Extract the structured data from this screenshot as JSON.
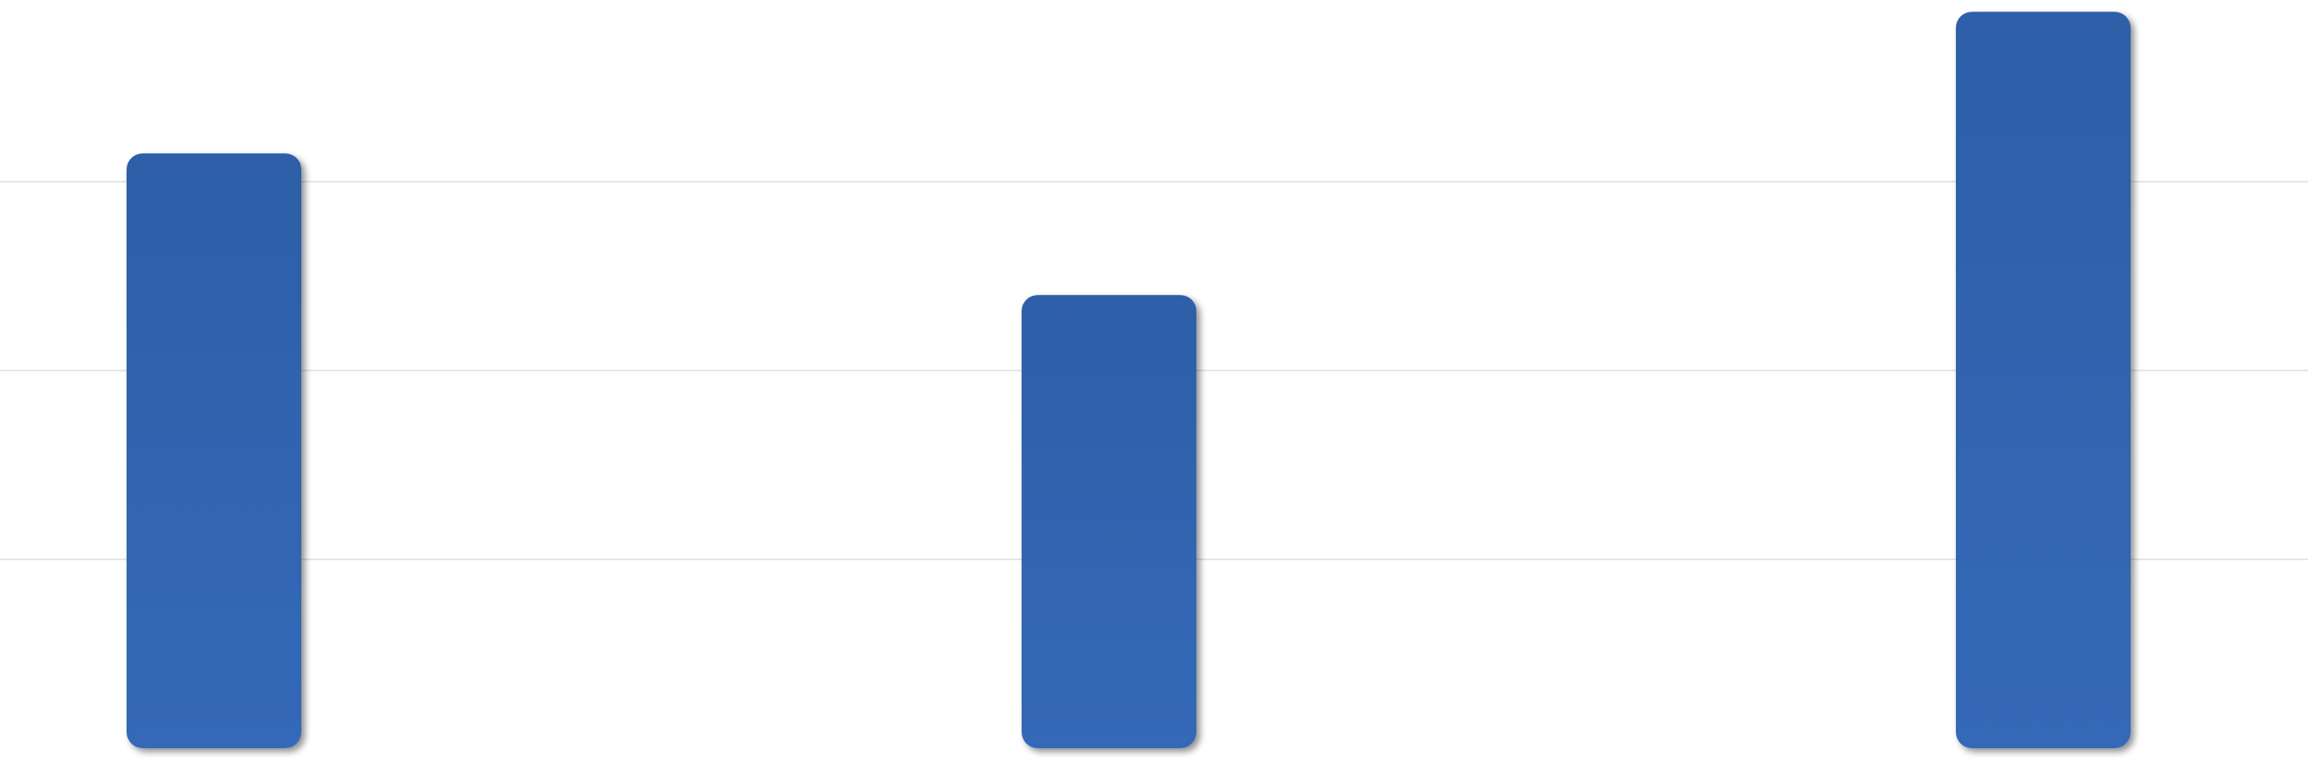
{
  "chart_data": {
    "type": "bar",
    "categories": [
      "",
      "",
      ""
    ],
    "values": [
      3.15,
      2.4,
      3.9
    ],
    "ylim": [
      0,
      4
    ],
    "grid": true,
    "bar_color": "#2f63ad",
    "grid_color": "#e6e6e6",
    "background": "#ffffff"
  }
}
